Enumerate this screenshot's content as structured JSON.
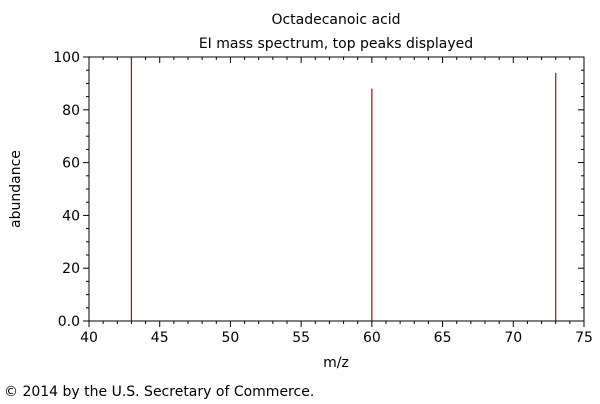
{
  "chart_data": {
    "type": "bar",
    "title": "Octadecanoic acid",
    "subtitle": "EI mass spectrum, top peaks displayed",
    "xlabel": "m/z",
    "ylabel": "abundance",
    "xlim": [
      40,
      75
    ],
    "ylim": [
      0,
      100
    ],
    "x_ticks": [
      40,
      45,
      50,
      55,
      60,
      65,
      70,
      75
    ],
    "y_ticks": [
      0,
      20,
      40,
      60,
      80,
      100
    ],
    "y_tick_labels": [
      "0.0",
      "20",
      "40",
      "60",
      "80",
      "100"
    ],
    "grid": false,
    "peaks": [
      {
        "mz": 43,
        "abundance": 100
      },
      {
        "mz": 60,
        "abundance": 88
      },
      {
        "mz": 73,
        "abundance": 94
      }
    ],
    "peak_color": "#cc0000",
    "axis_color": "#000000"
  },
  "footer": {
    "copyright": "© 2014 by the U.S. Secretary of Commerce."
  }
}
